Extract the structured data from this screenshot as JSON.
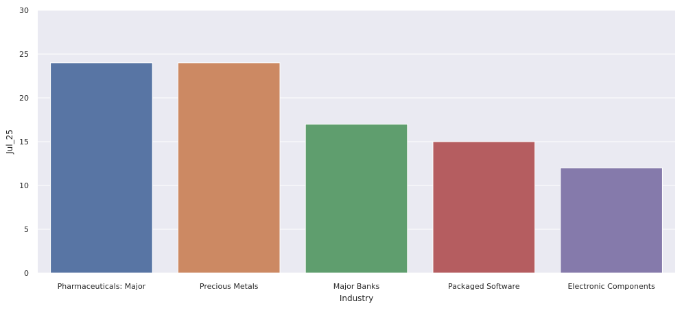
{
  "chart_data": {
    "type": "bar",
    "categories": [
      "Pharmaceuticals: Major",
      "Precious Metals",
      "Major Banks",
      "Packaged Software",
      "Electronic Components"
    ],
    "values": [
      24,
      24,
      17,
      15,
      12
    ],
    "colors": [
      "#5875a4",
      "#cc8963",
      "#5f9e6e",
      "#b55d60",
      "#857aab"
    ],
    "xlabel": "Industry",
    "ylabel": "Jul_25",
    "ylim": [
      0,
      30
    ],
    "yticks": [
      0,
      5,
      10,
      15,
      20,
      25,
      30
    ],
    "grid": true,
    "background_color": "#eaeaf2",
    "grid_color": "#ffffff"
  }
}
